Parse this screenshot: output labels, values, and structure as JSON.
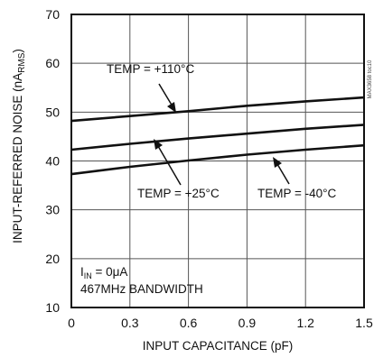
{
  "chart_data": {
    "type": "line",
    "xlabel": "INPUT CAPACITANCE (pF)",
    "ylabel": "INPUT-REFERRED NOISE (nA",
    "ylabel_sub": "RMS",
    "ylabel_close": ")",
    "xlim": [
      0,
      1.5
    ],
    "ylim": [
      10,
      70
    ],
    "x_ticks": [
      "0",
      "0.3",
      "0.6",
      "0.9",
      "1.2",
      "1.5"
    ],
    "y_ticks": [
      "10",
      "20",
      "30",
      "40",
      "50",
      "60",
      "70"
    ],
    "grid": true,
    "series": [
      {
        "name": "TEMP = +110°C",
        "x": [
          0,
          0.3,
          0.6,
          0.9,
          1.2,
          1.5
        ],
        "y": [
          48.2,
          49.2,
          50.2,
          51.3,
          52.2,
          53.0
        ]
      },
      {
        "name": "TEMP = +25°C",
        "x": [
          0,
          0.3,
          0.6,
          0.9,
          1.2,
          1.5
        ],
        "y": [
          42.3,
          43.5,
          44.6,
          45.6,
          46.6,
          47.4
        ]
      },
      {
        "name": "TEMP = -40°C",
        "x": [
          0,
          0.3,
          0.6,
          0.9,
          1.2,
          1.5
        ],
        "y": [
          37.3,
          38.8,
          40.1,
          41.3,
          42.3,
          43.2
        ]
      }
    ],
    "annotations": {
      "temp_110": "TEMP = +110°C",
      "temp_25": "TEMP = +25°C",
      "temp_m40": "TEMP = -40°C",
      "iin_prefix": "I",
      "iin_sub": "IN",
      "iin_rest": " = 0μA",
      "bandwidth": "467MHz BANDWIDTH",
      "figure_id": "MAX3658 toc10"
    }
  }
}
